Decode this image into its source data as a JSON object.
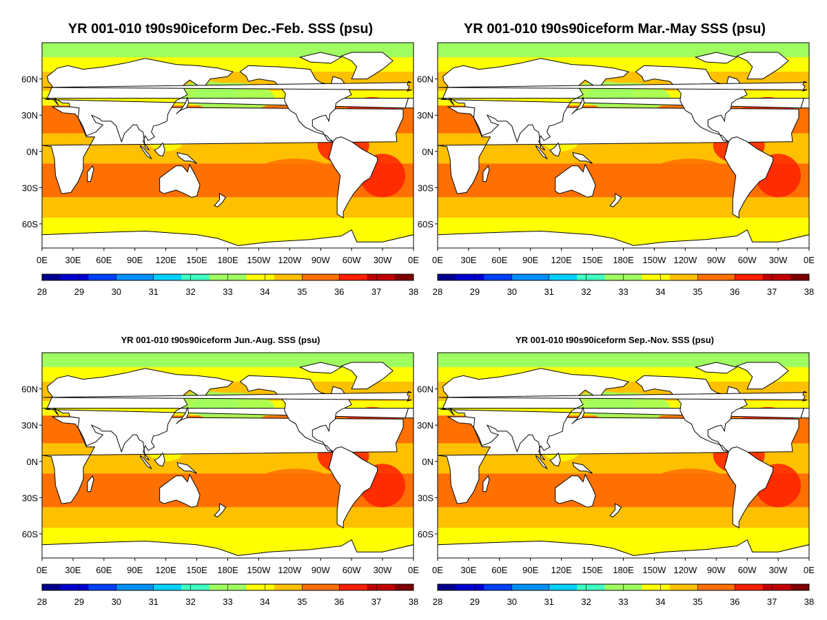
{
  "figure": {
    "panels": [
      {
        "title": "YR 001-010 t90s90iceform Dec.-Feb. SSS (psu)",
        "season": "DJF"
      },
      {
        "title": "YR 001-010 t90s90iceform Mar.-May SSS (psu)",
        "season": "MAM"
      },
      {
        "title": "YR 001-010 t90s90iceform Jun.-Aug. SSS (psu)",
        "season": "JJA"
      },
      {
        "title": "YR 001-010 t90s90iceform Sep.-Nov. SSS (psu)",
        "season": "SON"
      }
    ],
    "lon_labels": [
      "0E",
      "30E",
      "60E",
      "90E",
      "120E",
      "150E",
      "180E",
      "150W",
      "120W",
      "90W",
      "60W",
      "30W",
      "0E"
    ],
    "lat_labels": [
      "60N",
      "30N",
      "0N",
      "30S",
      "60S"
    ],
    "lat_values": [
      60,
      30,
      0,
      -30,
      -60
    ],
    "lat_range": [
      -80,
      90
    ],
    "lon_range": [
      0,
      360
    ],
    "colorbar": {
      "min": 28,
      "max": 38,
      "labels": [
        "28",
        "29",
        "30",
        "31",
        "32",
        "33",
        "34",
        "35",
        "36",
        "37",
        "38"
      ],
      "colors": [
        "#00008f",
        "#0000cf",
        "#0040ff",
        "#0090ff",
        "#00d0ff",
        "#40ffc0",
        "#a0ff60",
        "#ffff00",
        "#ffc000",
        "#ff7000",
        "#ff2000",
        "#c00000",
        "#800000"
      ]
    },
    "colors": {
      "land": "#ffffff",
      "coast": "#000000"
    }
  }
}
